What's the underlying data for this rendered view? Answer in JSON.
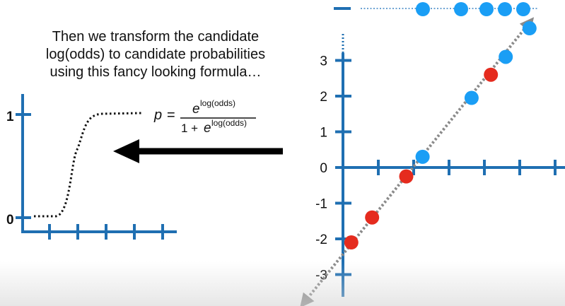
{
  "caption": {
    "line1": "Then we transform the candidate",
    "line2": "log(odds) to candidate probabilities",
    "line3": "using this fancy looking formula…"
  },
  "formula": {
    "lhs": "p",
    "equals": "=",
    "numerator_base": "e",
    "numerator_exponent": "log(odds)",
    "denominator_prefix": "1 + ",
    "denominator_base": "e",
    "denominator_exponent": "log(odds)"
  },
  "left_plot": {
    "y_tick_labels": [
      "0",
      "1"
    ],
    "x_tick_count": 5,
    "curve_style": "dotted sigmoid"
  },
  "right_plot": {
    "y_tick_labels": [
      "3",
      "2",
      "1",
      "0",
      "-1",
      "-2",
      "-3"
    ],
    "x_tick_count": 6
  },
  "colors": {
    "axis": "#1f6fb2",
    "positive": "#1a9ef5",
    "negative": "#e52b1e",
    "arrow": "#000000",
    "fit_line": "#8a8a8a"
  },
  "chart_data": {
    "type": "scatter",
    "xlabel": "",
    "ylabel": "",
    "ylim": [
      -3.3,
      3.9
    ],
    "series": [
      {
        "class": "positive",
        "log_odds": [
          0.3,
          1.95,
          3.1,
          3.9
        ]
      },
      {
        "class": "negative",
        "log_odds": [
          -2.1,
          -1.4,
          -0.25,
          2.6
        ]
      }
    ],
    "projected_points": {
      "count": 5,
      "color": "positive"
    },
    "fit_line": {
      "style": "dotted",
      "direction": "bidirectional",
      "x_range": [
        -3.3,
        3.9
      ]
    }
  }
}
